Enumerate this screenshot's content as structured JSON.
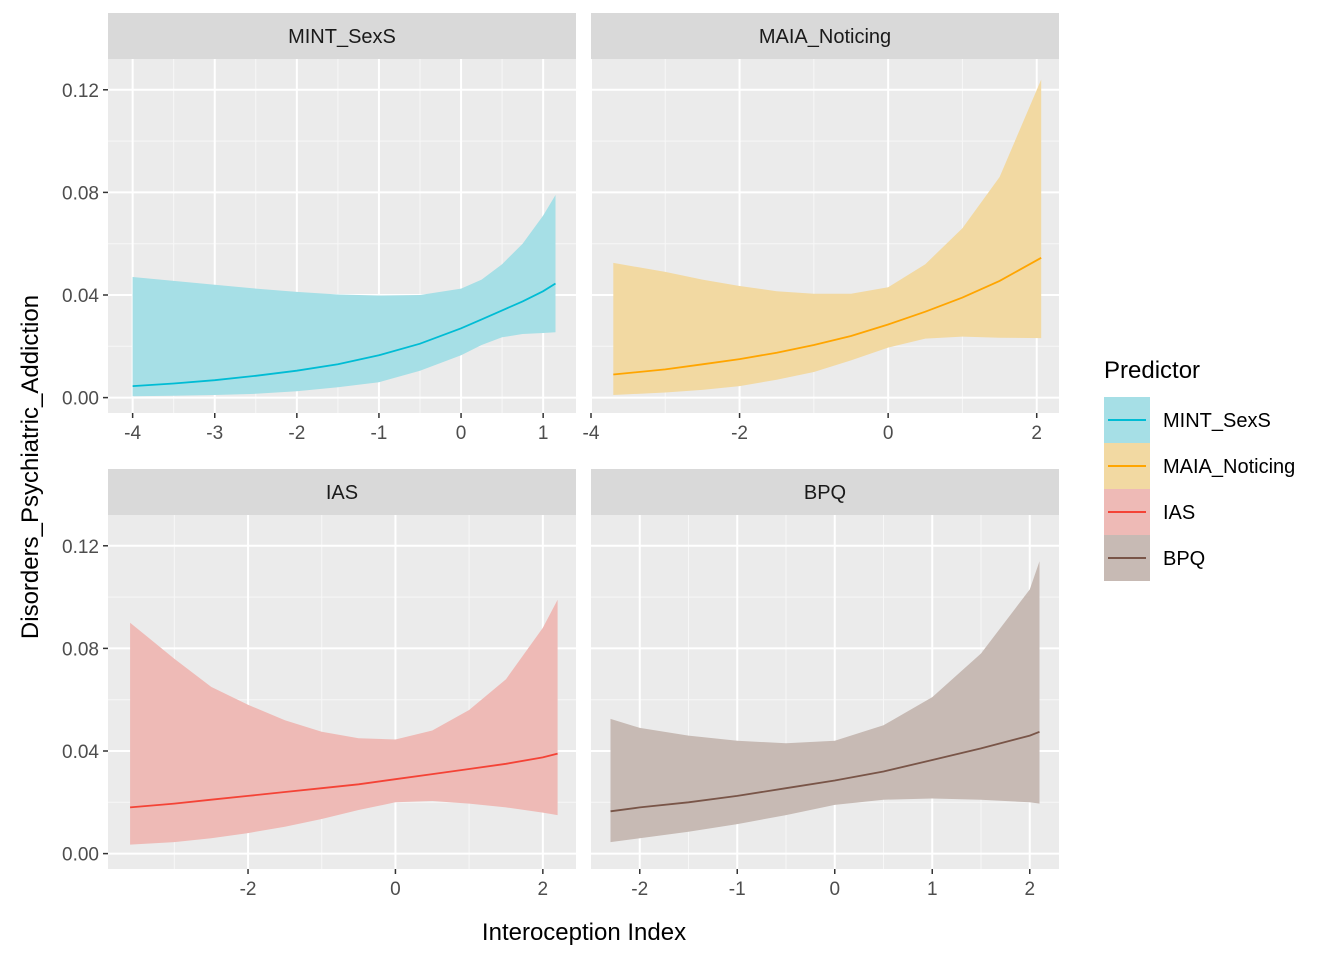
{
  "chart_data": {
    "type": "line",
    "xlabel": "Interoception Index",
    "ylabel": "Disorders_Psychiatric_Addiction",
    "legend": {
      "title": "Predictor",
      "placement": "right",
      "items": [
        {
          "label": "MINT_SexS",
          "line_color": "#00BCD4",
          "fill_color": "#A6DFE6"
        },
        {
          "label": "MAIA_Noticing",
          "line_color": "#FFA500",
          "fill_color": "#F2D9A2"
        },
        {
          "label": "IAS",
          "line_color": "#F44336",
          "fill_color": "#EEBAB6"
        },
        {
          "label": "BPQ",
          "line_color": "#795548",
          "fill_color": "#C7BAB4"
        }
      ]
    },
    "grid": true,
    "panels": [
      {
        "strip": "MINT_SexS",
        "line_color": "#00BCD4",
        "fill_color": "#A6DFE6",
        "xlim": [
          -4.3,
          1.4
        ],
        "ylim": [
          -0.006,
          0.132
        ],
        "xticks": [
          -4,
          -3,
          -2,
          -1,
          0,
          1
        ],
        "xticks_shown": true,
        "yticks": [
          0.0,
          0.04,
          0.08,
          0.12
        ],
        "ytick_labels": [
          "0.00",
          "0.04",
          "0.08",
          "0.12"
        ],
        "yticks_shown": true,
        "x": [
          -4.0,
          -3.5,
          -3.0,
          -2.5,
          -2.0,
          -1.5,
          -1.0,
          -0.5,
          0.0,
          0.25,
          0.5,
          0.75,
          1.0,
          1.15
        ],
        "fit": [
          0.0045,
          0.0055,
          0.0068,
          0.0085,
          0.0105,
          0.013,
          0.0165,
          0.021,
          0.027,
          0.0305,
          0.034,
          0.0375,
          0.0415,
          0.0445
        ],
        "lower": [
          0.0005,
          0.0007,
          0.001,
          0.0015,
          0.0025,
          0.004,
          0.006,
          0.0105,
          0.0165,
          0.0205,
          0.0235,
          0.0248,
          0.0252,
          0.0255
        ],
        "upper": [
          0.047,
          0.0455,
          0.044,
          0.0425,
          0.0412,
          0.0402,
          0.0398,
          0.04,
          0.0425,
          0.046,
          0.052,
          0.06,
          0.071,
          0.079
        ]
      },
      {
        "strip": "MAIA_Noticing",
        "line_color": "#FFA500",
        "fill_color": "#F2D9A2",
        "xlim": [
          -4.0,
          2.3
        ],
        "ylim": [
          -0.006,
          0.132
        ],
        "xticks": [
          -4,
          -2,
          0,
          2
        ],
        "xticks_shown": true,
        "yticks": [
          0.0,
          0.04,
          0.08,
          0.12
        ],
        "ytick_labels": [
          "0.00",
          "0.04",
          "0.08",
          "0.12"
        ],
        "yticks_shown": false,
        "x": [
          -3.7,
          -3.0,
          -2.5,
          -2.0,
          -1.5,
          -1.0,
          -0.5,
          0.0,
          0.5,
          1.0,
          1.5,
          2.06
        ],
        "fit": [
          0.009,
          0.011,
          0.013,
          0.015,
          0.0175,
          0.0205,
          0.024,
          0.0285,
          0.0335,
          0.039,
          0.0455,
          0.0545
        ],
        "lower": [
          0.001,
          0.002,
          0.003,
          0.0045,
          0.007,
          0.01,
          0.0145,
          0.0195,
          0.023,
          0.0238,
          0.0233,
          0.0232
        ],
        "upper": [
          0.0525,
          0.049,
          0.046,
          0.0435,
          0.0415,
          0.0405,
          0.0405,
          0.043,
          0.052,
          0.066,
          0.086,
          0.124
        ]
      },
      {
        "strip": "IAS",
        "line_color": "#F44336",
        "fill_color": "#EEBAB6",
        "xlim": [
          -3.9,
          2.45
        ],
        "ylim": [
          -0.006,
          0.132
        ],
        "xticks": [
          -2,
          0,
          2
        ],
        "xticks_shown": true,
        "yticks": [
          0.0,
          0.04,
          0.08,
          0.12
        ],
        "ytick_labels": [
          "0.00",
          "0.04",
          "0.08",
          "0.12"
        ],
        "yticks_shown": true,
        "x": [
          -3.6,
          -3.0,
          -2.5,
          -2.0,
          -1.5,
          -1.0,
          -0.5,
          0.0,
          0.5,
          1.0,
          1.5,
          2.0,
          2.2
        ],
        "fit": [
          0.018,
          0.0195,
          0.021,
          0.0225,
          0.024,
          0.0255,
          0.027,
          0.029,
          0.031,
          0.033,
          0.035,
          0.0375,
          0.039
        ],
        "lower": [
          0.0035,
          0.0045,
          0.006,
          0.008,
          0.0105,
          0.0135,
          0.017,
          0.02,
          0.0205,
          0.0195,
          0.018,
          0.016,
          0.015
        ],
        "upper": [
          0.09,
          0.076,
          0.065,
          0.058,
          0.052,
          0.0475,
          0.045,
          0.0445,
          0.048,
          0.056,
          0.068,
          0.088,
          0.099
        ]
      },
      {
        "strip": "BPQ",
        "line_color": "#795548",
        "fill_color": "#C7BAB4",
        "xlim": [
          -2.5,
          2.3
        ],
        "ylim": [
          -0.006,
          0.132
        ],
        "xticks": [
          -2,
          -1,
          0,
          1,
          2
        ],
        "xticks_shown": true,
        "yticks": [
          0.0,
          0.04,
          0.08,
          0.12
        ],
        "ytick_labels": [
          "0.00",
          "0.04",
          "0.08",
          "0.12"
        ],
        "yticks_shown": false,
        "x": [
          -2.3,
          -2.0,
          -1.5,
          -1.0,
          -0.5,
          0.0,
          0.5,
          1.0,
          1.5,
          2.0,
          2.1
        ],
        "fit": [
          0.0165,
          0.018,
          0.02,
          0.0225,
          0.0255,
          0.0285,
          0.032,
          0.0365,
          0.041,
          0.046,
          0.0475
        ],
        "lower": [
          0.0045,
          0.006,
          0.0085,
          0.0115,
          0.015,
          0.019,
          0.021,
          0.0215,
          0.021,
          0.02,
          0.0195
        ],
        "upper": [
          0.0525,
          0.049,
          0.046,
          0.044,
          0.043,
          0.044,
          0.05,
          0.061,
          0.078,
          0.103,
          0.114
        ]
      }
    ]
  }
}
